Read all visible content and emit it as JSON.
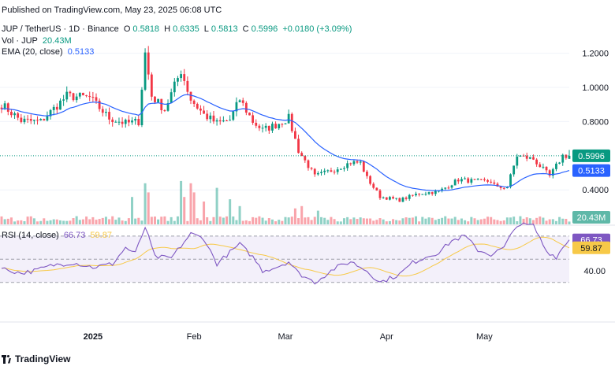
{
  "header": {
    "published": "Published on TradingView.com, May 23, 2025 06:08 UTC",
    "symbol": "JUP / TetherUS · 1D · Binance",
    "o_label": "O",
    "o_value": "0.5818",
    "h_label": "H",
    "h_value": "0.6335",
    "l_label": "L",
    "l_value": "0.5813",
    "c_label": "C",
    "c_value": "0.5996",
    "change": "+0.0180 (+3.09%)",
    "vol_label": "Vol · JUP",
    "vol_value": "20.43M",
    "ema_label": "EMA (20, close)",
    "ema_value": "0.5133",
    "rsi_label": "RSI (14, close)",
    "rsi_value": "66.73",
    "rsi_ma_value": "59.87"
  },
  "branding": {
    "name": "TradingView"
  },
  "price_axis": {
    "ticks": [
      "1.2000",
      "1.0000",
      "0.8000",
      "0.4000"
    ],
    "tick_values": [
      1.2,
      1.0,
      0.8,
      0.4
    ]
  },
  "rsi_axis": {
    "ticks": [
      "40.00"
    ],
    "tick_values": [
      40
    ]
  },
  "time_axis": [
    {
      "label": "2025",
      "bold": true,
      "day": 28
    },
    {
      "label": "Feb",
      "bold": false,
      "day": 59
    },
    {
      "label": "Mar",
      "bold": false,
      "day": 87
    },
    {
      "label": "Apr",
      "bold": false,
      "day": 118
    },
    {
      "label": "May",
      "bold": false,
      "day": 148
    }
  ],
  "badges": {
    "price": "0.5996",
    "ema": "0.5133",
    "volume": "20.43M",
    "rsi": "66.73",
    "rsi_ma": "59.87"
  },
  "colors": {
    "up": "#089981",
    "down": "#f23645",
    "ema": "#2962ff",
    "rsi": "#7e57c2",
    "rsi_ma": "#f7c948",
    "rsi_band": "#f3f0fa"
  },
  "chart_data": [
    {
      "type": "candlestick",
      "title": "JUP / TetherUS · 1D · Binance",
      "x_unit": "daily bars, Dec 2024 – May 23 2025",
      "ohlc_anchors_close": [
        [
          0,
          0.9
        ],
        [
          6,
          0.805
        ],
        [
          12,
          0.8
        ],
        [
          20,
          0.95
        ],
        [
          27,
          0.94
        ],
        [
          33,
          0.82
        ],
        [
          38,
          0.79
        ],
        [
          42,
          0.8
        ],
        [
          44,
          1.2
        ],
        [
          46,
          0.95
        ],
        [
          50,
          0.87
        ],
        [
          55,
          1.1
        ],
        [
          58,
          0.93
        ],
        [
          62,
          0.84
        ],
        [
          66,
          0.79
        ],
        [
          70,
          0.81
        ],
        [
          73,
          0.93
        ],
        [
          77,
          0.8
        ],
        [
          80,
          0.75
        ],
        [
          84,
          0.78
        ],
        [
          88,
          0.82
        ],
        [
          91,
          0.63
        ],
        [
          96,
          0.48
        ],
        [
          102,
          0.52
        ],
        [
          107,
          0.56
        ],
        [
          110,
          0.56
        ],
        [
          112,
          0.47
        ],
        [
          116,
          0.36
        ],
        [
          122,
          0.34
        ],
        [
          128,
          0.38
        ],
        [
          134,
          0.39
        ],
        [
          140,
          0.46
        ],
        [
          146,
          0.45
        ],
        [
          150,
          0.45
        ],
        [
          152,
          0.41
        ],
        [
          155,
          0.42
        ],
        [
          158,
          0.6
        ],
        [
          163,
          0.58
        ],
        [
          168,
          0.48
        ],
        [
          172,
          0.6
        ],
        [
          174,
          0.6
        ]
      ],
      "last_bar": {
        "open": 0.5818,
        "high": 0.6335,
        "low": 0.5813,
        "close": 0.5996
      },
      "ema20_last": 0.5133,
      "volume_last": "20.43M",
      "ylim": [
        0.28,
        1.35
      ]
    },
    {
      "type": "line",
      "title": "RSI (14, close)",
      "series": [
        {
          "name": "RSI",
          "values_anchor": [
            [
              0,
              42
            ],
            [
              6,
              38
            ],
            [
              10,
              40
            ],
            [
              16,
              45
            ],
            [
              22,
              47
            ],
            [
              28,
              43
            ],
            [
              34,
              46
            ],
            [
              38,
              60
            ],
            [
              41,
              55
            ],
            [
              44,
              78
            ],
            [
              47,
              52
            ],
            [
              52,
              51
            ],
            [
              58,
              72
            ],
            [
              62,
              68
            ],
            [
              66,
              46
            ],
            [
              70,
              56
            ],
            [
              73,
              63
            ],
            [
              77,
              52
            ],
            [
              80,
              40
            ],
            [
              84,
              43
            ],
            [
              88,
              48
            ],
            [
              91,
              38
            ],
            [
              96,
              30
            ],
            [
              102,
              42
            ],
            [
              107,
              48
            ],
            [
              112,
              40
            ],
            [
              116,
              30
            ],
            [
              122,
              37
            ],
            [
              126,
              47
            ],
            [
              130,
              52
            ],
            [
              134,
              56
            ],
            [
              138,
              66
            ],
            [
              142,
              70
            ],
            [
              146,
              58
            ],
            [
              150,
              54
            ],
            [
              154,
              60
            ],
            [
              158,
              80
            ],
            [
              163,
              79
            ],
            [
              167,
              57
            ],
            [
              170,
              52
            ],
            [
              172,
              60
            ],
            [
              174,
              66.73
            ]
          ],
          "last": 66.73
        },
        {
          "name": "MA",
          "last": 59.87
        }
      ],
      "bands": [
        70,
        50,
        30
      ],
      "ylim": [
        28,
        82
      ]
    }
  ]
}
